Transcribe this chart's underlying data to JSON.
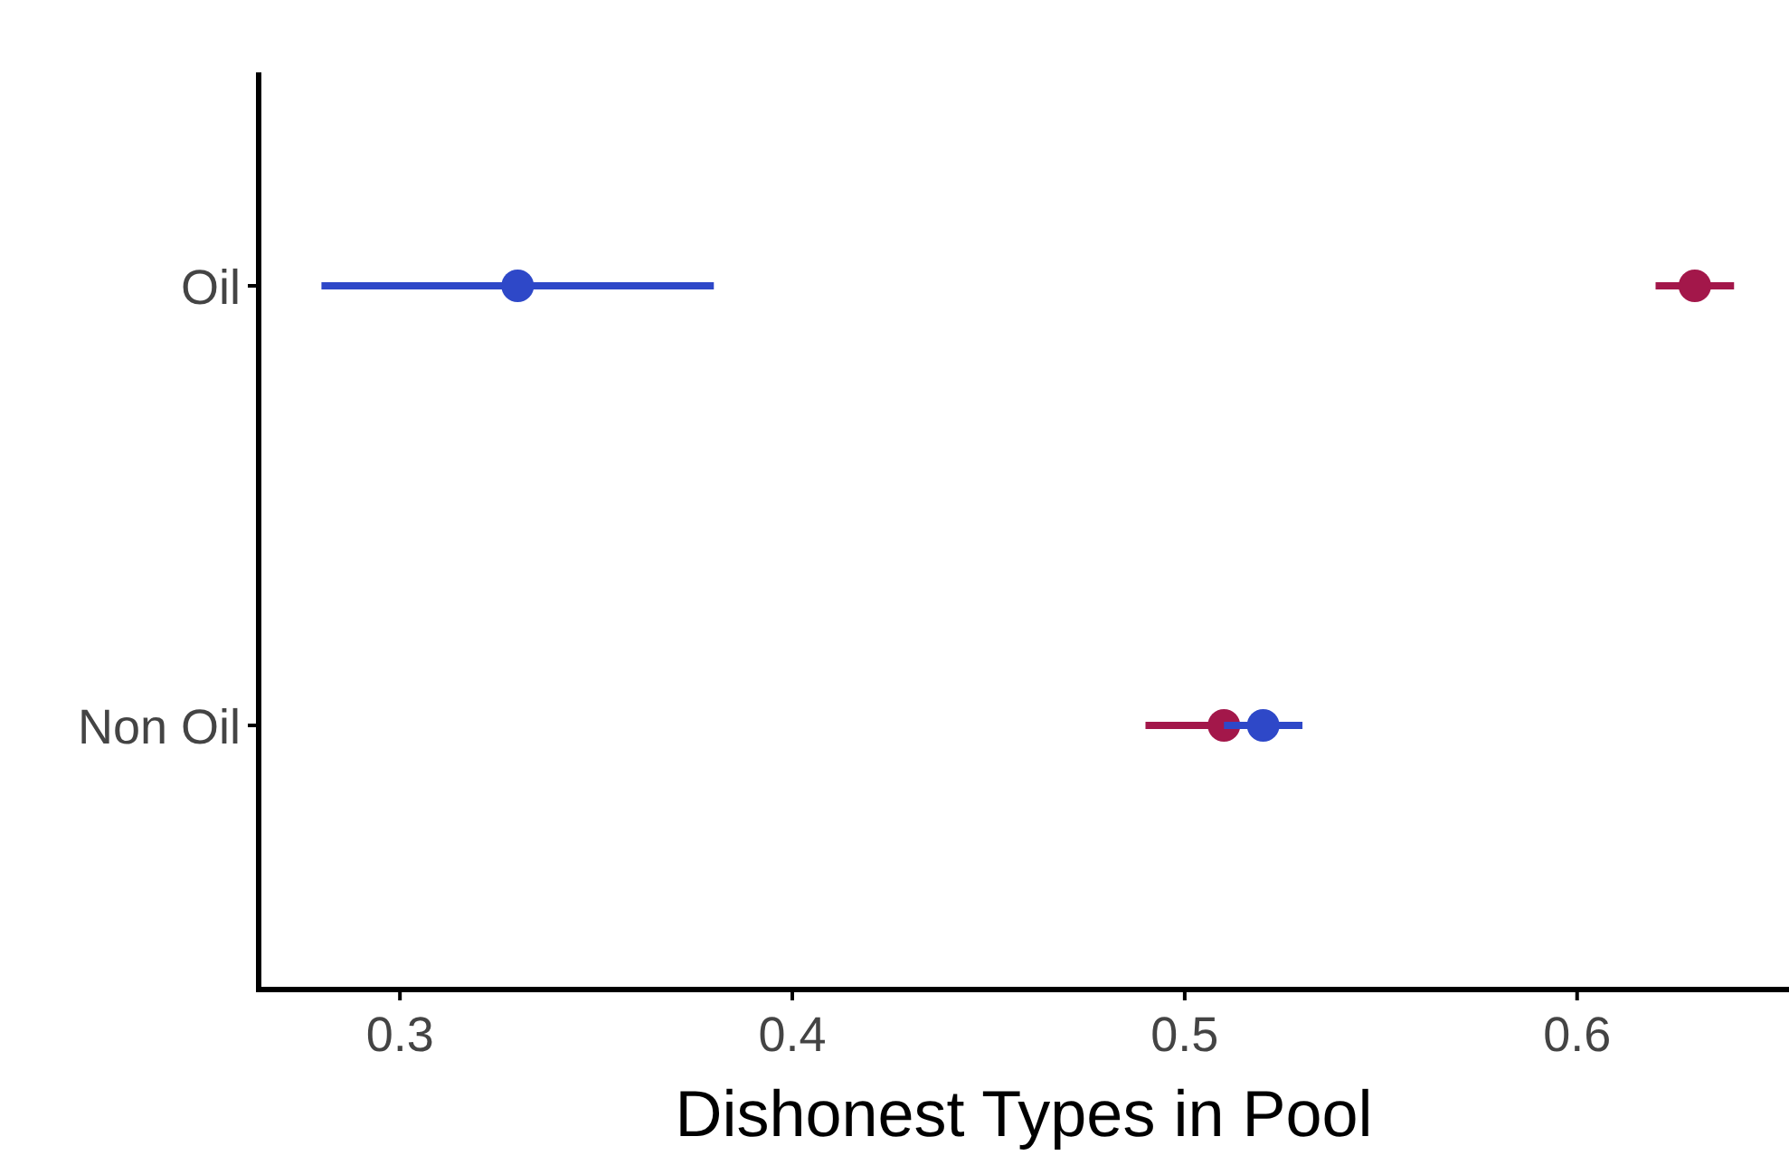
{
  "chart_data": {
    "type": "scatter",
    "orientation": "horizontal",
    "xlabel": "Dishonest Types in Pool",
    "categories": [
      "Oil",
      "Non Oil"
    ],
    "series": [
      {
        "color": "#2e48c8",
        "values": [
          0.33,
          0.52
        ],
        "errors": [
          [
            0.28,
            0.38
          ],
          [
            0.51,
            0.53
          ]
        ]
      },
      {
        "color": "#a3174a",
        "values": [
          0.63,
          0.51
        ],
        "errors": [
          [
            0.62,
            0.64
          ],
          [
            0.49,
            0.53
          ]
        ]
      }
    ],
    "xlim": [
      0.264,
      0.654
    ],
    "xticks": [
      0.3,
      0.4,
      0.5,
      0.6
    ],
    "marker": "circle",
    "grid": false
  }
}
